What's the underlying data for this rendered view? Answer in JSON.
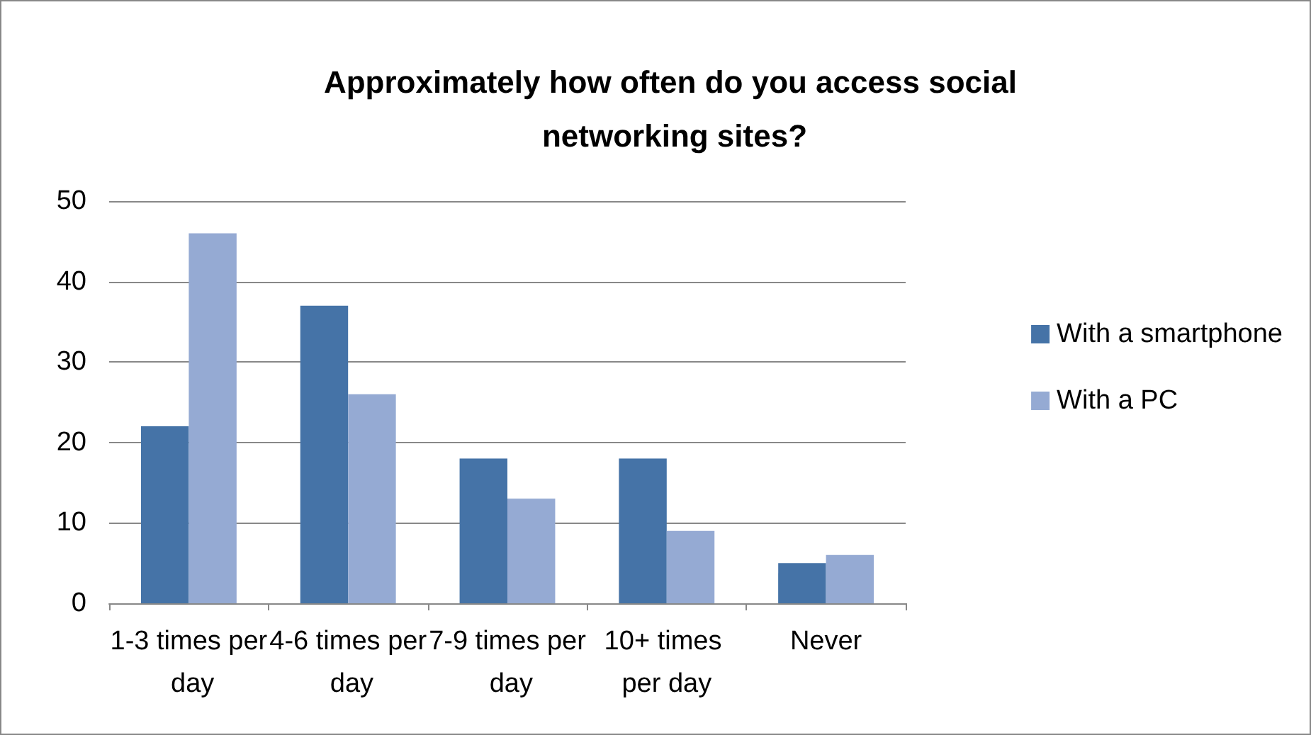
{
  "chart_data": {
    "type": "bar",
    "title": "Approximately how often do you access social networking sites?",
    "categories": [
      "1-3 times per day",
      "4-6 times per day",
      "7-9 times per day",
      "10+ times per day",
      "Never"
    ],
    "series": [
      {
        "name": "With a smartphone",
        "color": "#4573a7",
        "values": [
          22,
          37,
          18,
          18,
          5
        ]
      },
      {
        "name": "With a PC",
        "color": "#95aad3",
        "values": [
          46,
          26,
          13,
          9,
          6
        ]
      }
    ],
    "ylim": [
      0,
      50
    ],
    "yticks": [
      0,
      10,
      20,
      30,
      40,
      50
    ],
    "grid": "y",
    "legend": "right"
  }
}
